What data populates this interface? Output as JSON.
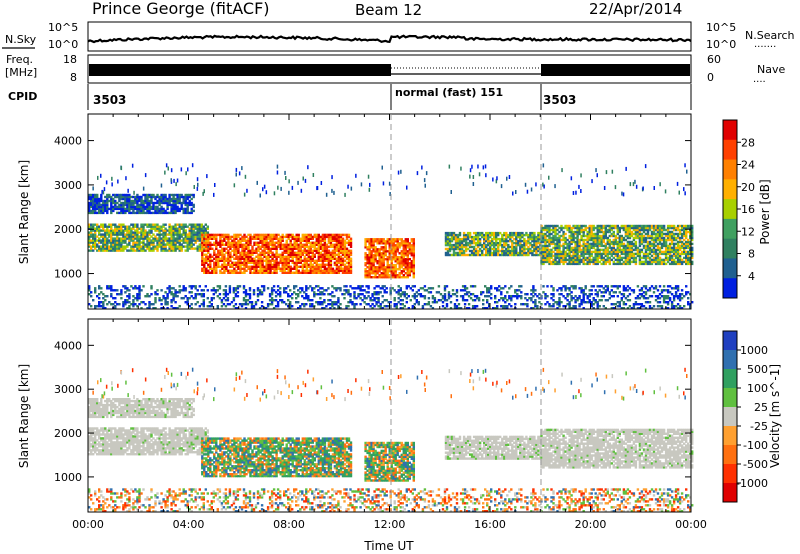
{
  "header": {
    "station": "Prince George (fitACF)",
    "beam": "Beam 12",
    "date": "22/Apr/2014"
  },
  "noise_panel": {
    "left_label": "N.Sky",
    "left_ticks": [
      "10^5",
      "10^0"
    ],
    "right_ticks": [
      "10^5",
      "10^0"
    ],
    "right_label": "N.Search",
    "right_legend": "......."
  },
  "freq_panel": {
    "left_label_line1": "Freq.",
    "left_label_line2": "[MHz]",
    "left_ticks": [
      "18",
      "8"
    ],
    "right_ticks": [
      "60",
      "0"
    ],
    "right_label": "Nave",
    "right_legend": "...."
  },
  "cpid_panel": {
    "label": "CPID",
    "segments": [
      {
        "text": "3503",
        "start_hour": 0
      },
      {
        "text": "normal (fast) 151",
        "start_hour": 12
      },
      {
        "text": "3503",
        "start_hour": 18
      }
    ]
  },
  "chart_data": [
    {
      "type": "heatmap",
      "name": "power",
      "ylabel": "Slant Range [km]",
      "y_ticks": [
        1000,
        2000,
        3000,
        4000
      ],
      "ylim": [
        200,
        4600
      ],
      "x_range_hours": [
        0,
        24
      ],
      "colorbar_label": "Power [dB]",
      "colorbar_ticks": [
        "28",
        "24",
        "20",
        "16",
        "12",
        "8",
        "4"
      ],
      "colorbar_colors": [
        "#e00000",
        "#ff4000",
        "#ff8000",
        "#ffb000",
        "#a8d000",
        "#40a060",
        "#308060",
        "#206090",
        "#0020e0"
      ],
      "bands": [
        {
          "t0": 0.0,
          "t1": 4.2,
          "r0": 2350,
          "r1": 2800,
          "level": "low"
        },
        {
          "t0": 0.0,
          "t1": 4.8,
          "r0": 1500,
          "r1": 2100,
          "level": "mid"
        },
        {
          "t0": 4.5,
          "t1": 10.5,
          "r0": 1000,
          "r1": 1900,
          "level": "high"
        },
        {
          "t0": 11.0,
          "t1": 13.0,
          "r0": 900,
          "r1": 1800,
          "level": "high"
        },
        {
          "t0": 14.2,
          "t1": 18.0,
          "r0": 1400,
          "r1": 1900,
          "level": "mid"
        },
        {
          "t0": 18.0,
          "t1": 24.0,
          "r0": 1200,
          "r1": 2100,
          "level": "mid"
        },
        {
          "t0": 0.0,
          "t1": 24.0,
          "r0": 200,
          "r1": 700,
          "level": "low"
        }
      ]
    },
    {
      "type": "heatmap",
      "name": "velocity",
      "xlabel": "Time UT",
      "ylabel": "Slant Range [km]",
      "y_ticks": [
        1000,
        2000,
        3000,
        4000
      ],
      "ylim": [
        200,
        4600
      ],
      "x_range_hours": [
        0,
        24
      ],
      "x_tick_labels": [
        "00:00",
        "04:00",
        "08:00",
        "12:00",
        "16:00",
        "20:00",
        "00:00"
      ],
      "colorbar_label": "Velocity [m s^-1]",
      "colorbar_ticks": [
        "1000",
        "500",
        "100",
        "25",
        "-25",
        "-100",
        "-500",
        "-1000"
      ],
      "colorbar_colors": [
        "#2040c0",
        "#3070b0",
        "#30a060",
        "#60c040",
        "#c8c8c0",
        "#ffa030",
        "#ff7010",
        "#ff3000",
        "#e00000"
      ],
      "bands": [
        {
          "t0": 0.0,
          "t1": 4.2,
          "r0": 2350,
          "r1": 2800,
          "level": "ground"
        },
        {
          "t0": 0.0,
          "t1": 4.8,
          "r0": 1500,
          "r1": 2100,
          "level": "ground"
        },
        {
          "t0": 4.5,
          "t1": 10.5,
          "r0": 1000,
          "r1": 1900,
          "level": "flow"
        },
        {
          "t0": 11.0,
          "t1": 13.0,
          "r0": 900,
          "r1": 1800,
          "level": "flow"
        },
        {
          "t0": 14.2,
          "t1": 18.0,
          "r0": 1400,
          "r1": 1900,
          "level": "ground"
        },
        {
          "t0": 18.0,
          "t1": 24.0,
          "r0": 1200,
          "r1": 2100,
          "level": "ground"
        },
        {
          "t0": 0.0,
          "t1": 24.0,
          "r0": 200,
          "r1": 700,
          "level": "scatter"
        }
      ]
    }
  ]
}
